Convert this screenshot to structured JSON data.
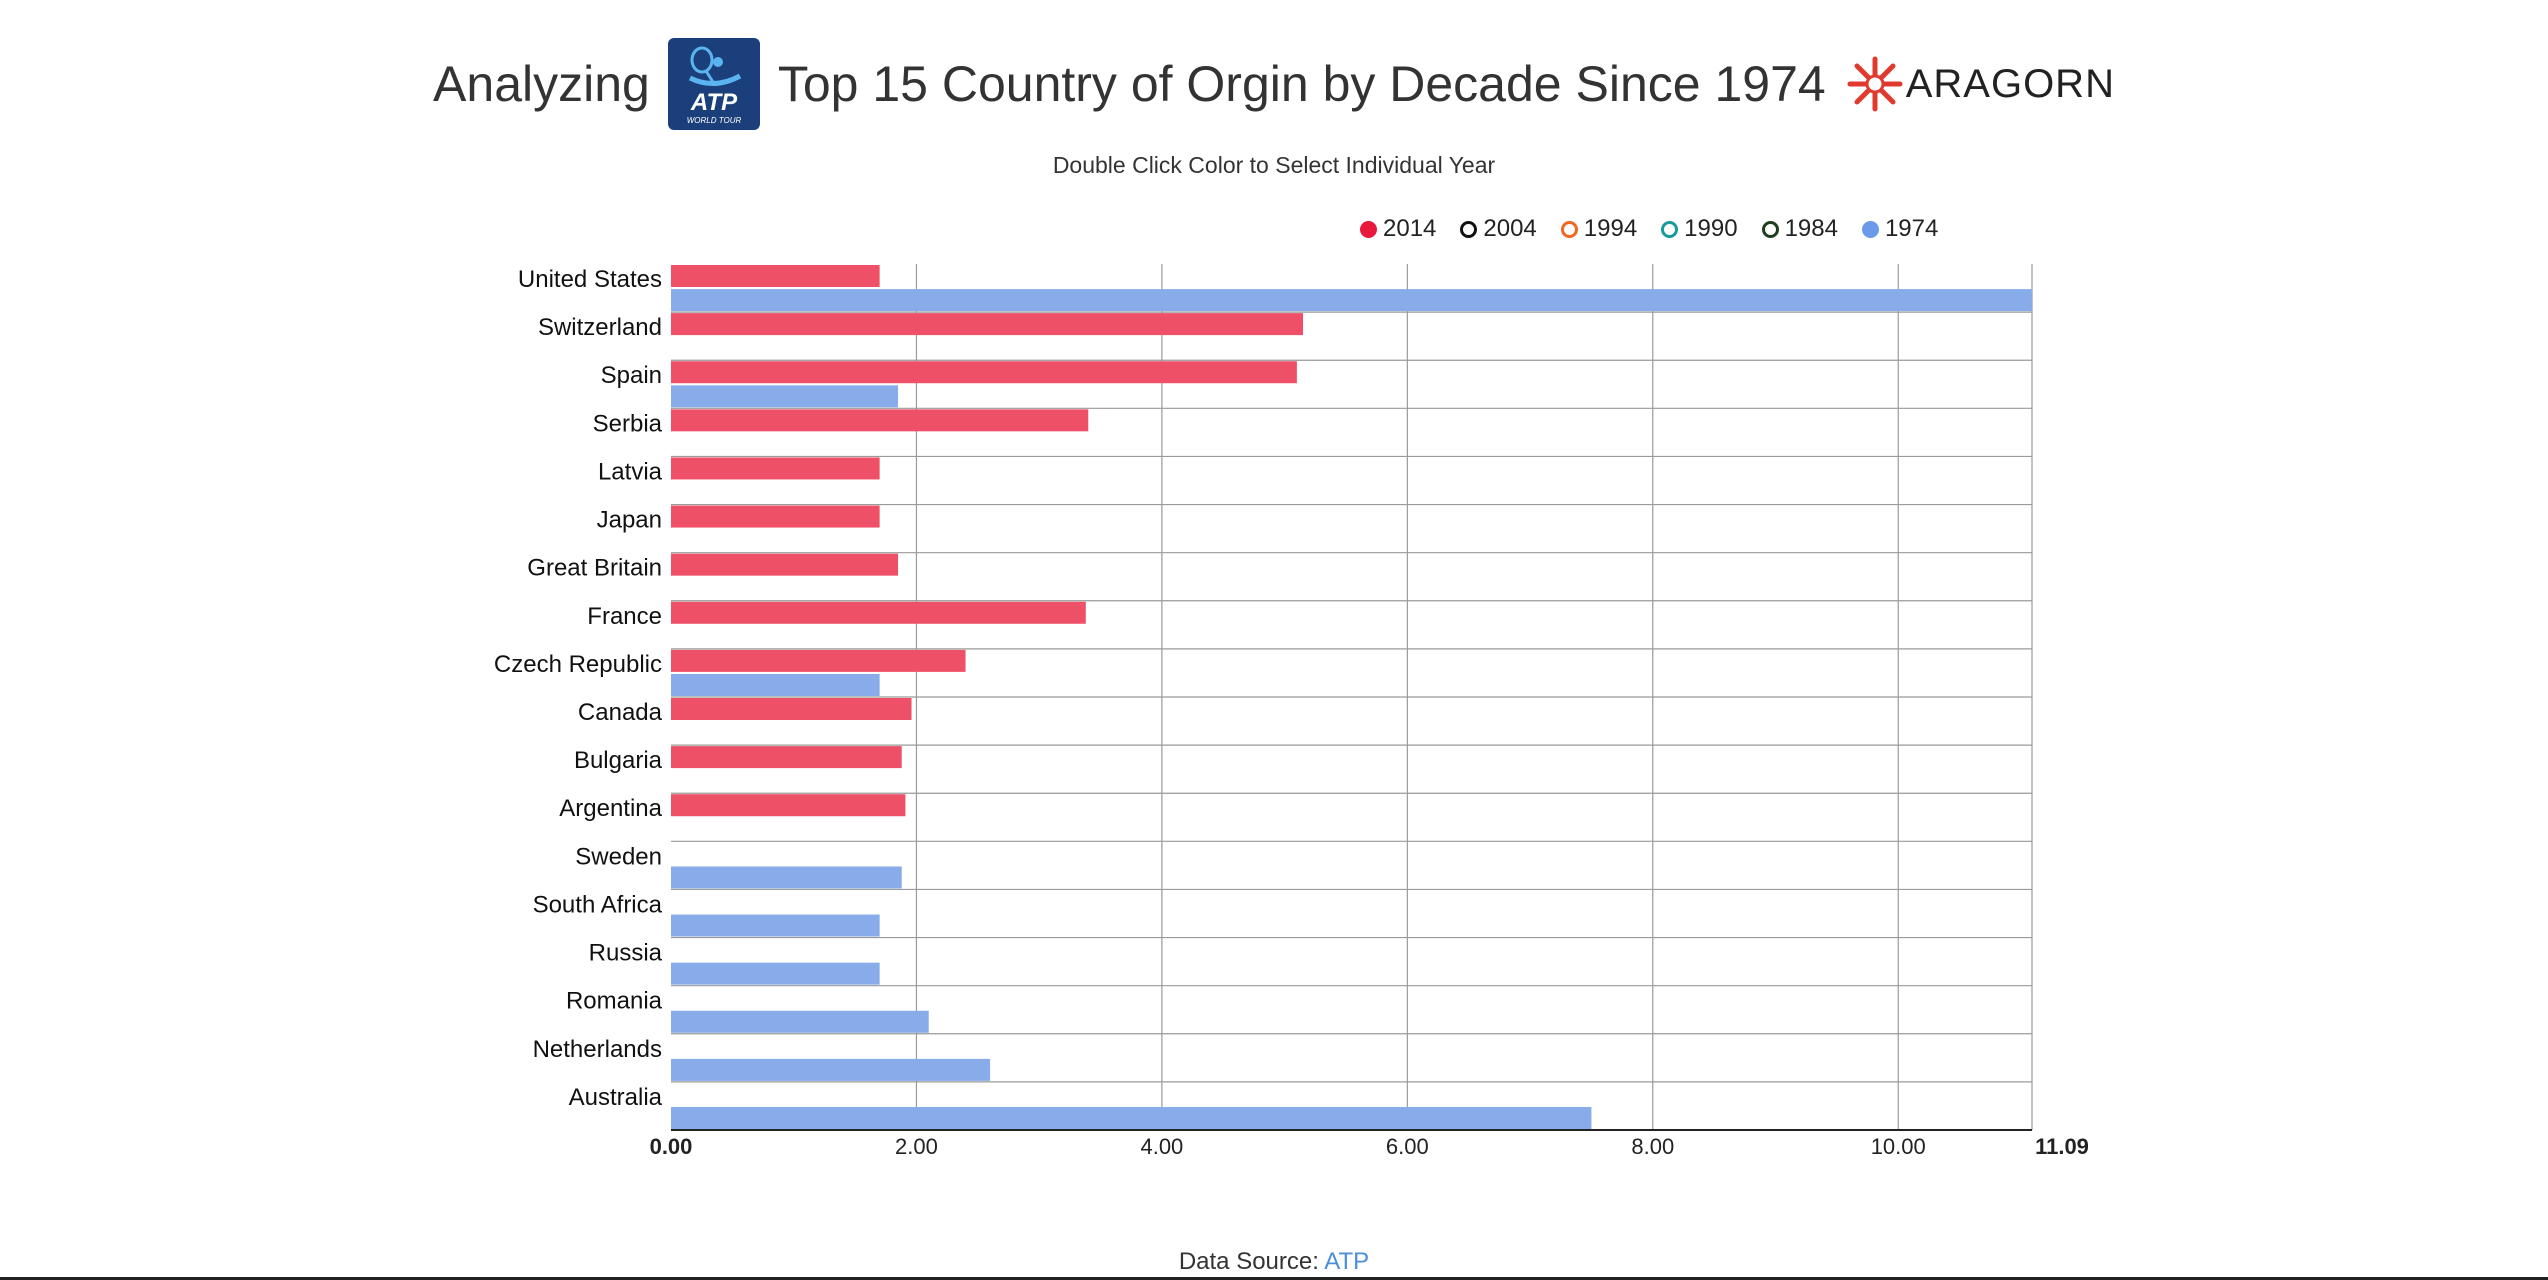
{
  "header": {
    "title_left": "Analyzing",
    "title_right": "Top 15 Country of Orgin by Decade Since 1974",
    "atp_logo_text": "ATP",
    "atp_logo_subtext": "WORLD TOUR",
    "brand_name": "ARAGORN",
    "subtitle": "Double Click Color to Select Individual Year"
  },
  "legend": [
    {
      "label": "2014",
      "color": "#e8193c",
      "filled": true
    },
    {
      "label": "2004",
      "color": "#111111",
      "filled": false
    },
    {
      "label": "1994",
      "color": "#f26522",
      "filled": false
    },
    {
      "label": "1990",
      "color": "#1a9a9a",
      "filled": false
    },
    {
      "label": "1984",
      "color": "#1d3d1d",
      "filled": false
    },
    {
      "label": "1974",
      "color": "#6a9ae8",
      "filled": true
    }
  ],
  "colors": {
    "s2014": "#ee5068",
    "s1974": "#87ace9",
    "grid": "#9a9a9a",
    "axis": "#222222",
    "link": "#4a8fd8"
  },
  "chart_data": {
    "type": "bar",
    "orientation": "horizontal",
    "categories": [
      "United States",
      "Switzerland",
      "Spain",
      "Serbia",
      "Latvia",
      "Japan",
      "Great Britain",
      "France",
      "Czech Republic",
      "Canada",
      "Bulgaria",
      "Argentina",
      "Sweden",
      "South Africa",
      "Russia",
      "Romania",
      "Netherlands",
      "Australia"
    ],
    "series": [
      {
        "name": "2014",
        "values": [
          1.7,
          5.15,
          5.1,
          3.4,
          1.7,
          1.7,
          1.85,
          3.38,
          2.4,
          1.96,
          1.88,
          1.91,
          null,
          null,
          null,
          null,
          null,
          null
        ]
      },
      {
        "name": "1974",
        "values": [
          11.09,
          null,
          1.85,
          null,
          null,
          null,
          null,
          null,
          1.7,
          null,
          null,
          null,
          1.88,
          1.7,
          1.7,
          2.1,
          2.6,
          7.5
        ]
      }
    ],
    "xticks": [
      "0.00",
      "2.00",
      "4.00",
      "6.00",
      "8.00",
      "10.00",
      "11.09"
    ],
    "xlim": [
      0,
      11.09
    ],
    "grid": true,
    "legend_position": "top-right"
  },
  "footer": {
    "label": "Data Source:",
    "link_text": "ATP"
  }
}
